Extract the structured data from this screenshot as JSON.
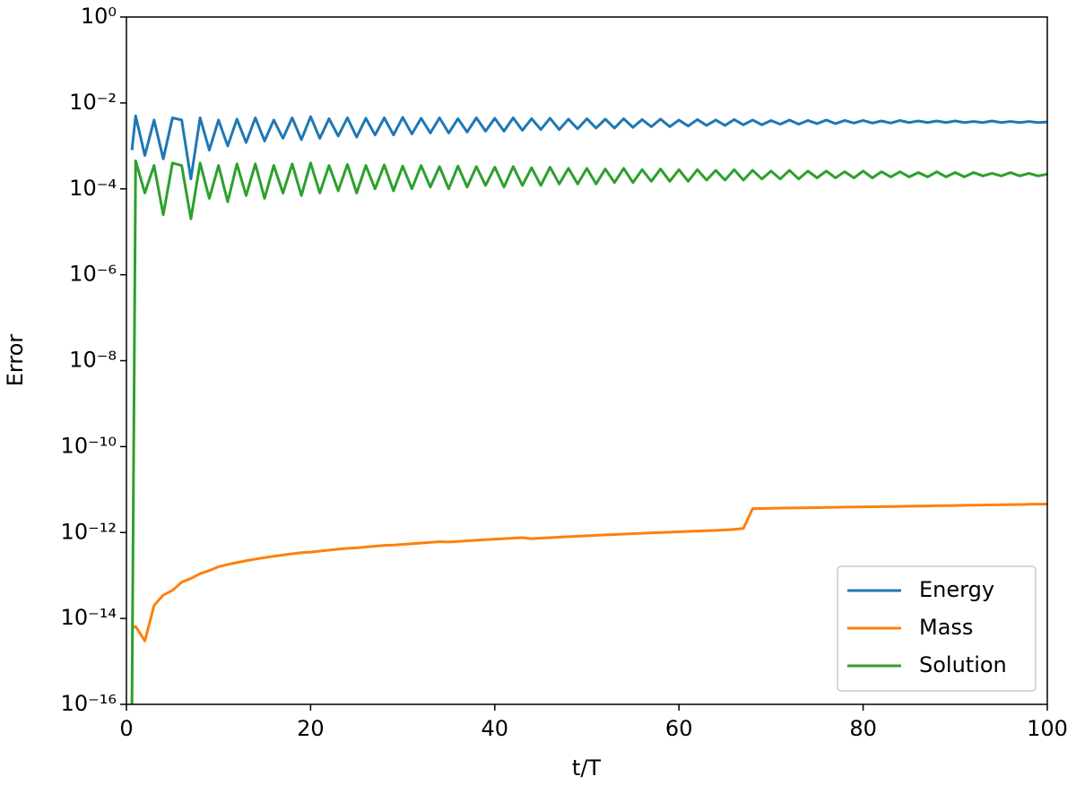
{
  "chart_data": {
    "type": "line",
    "xlabel": "t/T",
    "ylabel": "Error",
    "log_y": true,
    "legend": "lower right",
    "xlim": [
      0,
      100
    ],
    "xticks": [
      0,
      20,
      40,
      60,
      80,
      100
    ],
    "ylim": [
      1e-16,
      1
    ],
    "yticks": [
      {
        "value": 1e-16,
        "label": "10⁻¹⁶"
      },
      {
        "value": 1e-14,
        "label": "10⁻¹⁴"
      },
      {
        "value": 1e-12,
        "label": "10⁻¹²"
      },
      {
        "value": 1e-10,
        "label": "10⁻¹⁰"
      },
      {
        "value": 1e-08,
        "label": "10⁻⁸"
      },
      {
        "value": 1e-06,
        "label": "10⁻⁶"
      },
      {
        "value": 0.0001,
        "label": "10⁻⁴"
      },
      {
        "value": 0.01,
        "label": "10⁻²"
      },
      {
        "value": 1,
        "label": "10⁰"
      }
    ],
    "x": [
      0.6,
      1,
      2,
      3,
      4,
      5,
      6,
      7,
      8,
      9,
      10,
      11,
      12,
      13,
      14,
      15,
      16,
      17,
      18,
      19,
      20,
      21,
      22,
      23,
      24,
      25,
      26,
      27,
      28,
      29,
      30,
      31,
      32,
      33,
      34,
      35,
      36,
      37,
      38,
      39,
      40,
      41,
      42,
      43,
      44,
      45,
      46,
      47,
      48,
      49,
      50,
      51,
      52,
      53,
      54,
      55,
      56,
      57,
      58,
      59,
      60,
      61,
      62,
      63,
      64,
      65,
      66,
      67,
      68,
      69,
      70,
      71,
      72,
      73,
      74,
      75,
      76,
      77,
      78,
      79,
      80,
      81,
      82,
      83,
      84,
      85,
      86,
      87,
      88,
      89,
      90,
      91,
      92,
      93,
      94,
      95,
      96,
      97,
      98,
      99,
      100
    ],
    "series": [
      {
        "name": "Energy",
        "color": "#1f77b4",
        "values": [
          0.0008,
          0.005,
          0.0006,
          0.004,
          0.0005,
          0.0045,
          0.004,
          0.00017,
          0.0045,
          0.0008,
          0.004,
          0.001,
          0.0042,
          0.0012,
          0.0045,
          0.0013,
          0.004,
          0.0015,
          0.0045,
          0.0014,
          0.0048,
          0.0015,
          0.0043,
          0.0017,
          0.0045,
          0.0016,
          0.0044,
          0.0018,
          0.0045,
          0.0018,
          0.0046,
          0.0019,
          0.0044,
          0.002,
          0.0045,
          0.002,
          0.0043,
          0.0021,
          0.0045,
          0.0022,
          0.0044,
          0.0022,
          0.0045,
          0.0023,
          0.0043,
          0.0024,
          0.0044,
          0.0024,
          0.0042,
          0.0025,
          0.0043,
          0.0026,
          0.0042,
          0.0026,
          0.0043,
          0.0027,
          0.0041,
          0.0028,
          0.0042,
          0.0028,
          0.004,
          0.0029,
          0.0041,
          0.003,
          0.004,
          0.003,
          0.0041,
          0.0031,
          0.004,
          0.0031,
          0.0039,
          0.0032,
          0.004,
          0.0032,
          0.0039,
          0.0033,
          0.004,
          0.0033,
          0.0039,
          0.0034,
          0.0039,
          0.0034,
          0.0038,
          0.0034,
          0.0039,
          0.0035,
          0.0038,
          0.0035,
          0.0038,
          0.0035,
          0.0038,
          0.0035,
          0.0037,
          0.0035,
          0.0038,
          0.0035,
          0.0037,
          0.0035,
          0.0037,
          0.0035,
          0.0036
        ]
      },
      {
        "name": "Mass",
        "color": "#ff7f0e",
        "values": [
          6e-15,
          6.5e-15,
          3e-15,
          2e-14,
          3.5e-14,
          4.5e-14,
          7e-14,
          8.5e-14,
          1.1e-13,
          1.3e-13,
          1.6e-13,
          1.8e-13,
          2e-13,
          2.2e-13,
          2.4e-13,
          2.6e-13,
          2.8e-13,
          3e-13,
          3.2e-13,
          3.4e-13,
          3.5e-13,
          3.7e-13,
          3.9e-13,
          4.1e-13,
          4.3e-13,
          4.4e-13,
          4.6e-13,
          4.8e-13,
          5e-13,
          5.1e-13,
          5.3e-13,
          5.5e-13,
          5.7e-13,
          5.9e-13,
          6.1e-13,
          6e-13,
          6.2e-13,
          6.4e-13,
          6.6e-13,
          6.8e-13,
          7e-13,
          7.2e-13,
          7.4e-13,
          7.6e-13,
          7.2e-13,
          7.4e-13,
          7.6e-13,
          7.8e-13,
          8e-13,
          8.2e-13,
          8.4e-13,
          8.6e-13,
          8.8e-13,
          9e-13,
          9.2e-13,
          9.4e-13,
          9.6e-13,
          9.8e-13,
          1e-12,
          1.02e-12,
          1.04e-12,
          1.06e-12,
          1.08e-12,
          1.1e-12,
          1.12e-12,
          1.15e-12,
          1.18e-12,
          1.25e-12,
          3.6e-12,
          3.62e-12,
          3.65e-12,
          3.7e-12,
          3.72e-12,
          3.75e-12,
          3.78e-12,
          3.8e-12,
          3.83e-12,
          3.86e-12,
          3.9e-12,
          3.92e-12,
          3.95e-12,
          3.98e-12,
          4e-12,
          4.03e-12,
          4.06e-12,
          4.1e-12,
          4.13e-12,
          4.16e-12,
          4.2e-12,
          4.23e-12,
          4.26e-12,
          4.3e-12,
          4.33e-12,
          4.36e-12,
          4.4e-12,
          4.43e-12,
          4.46e-12,
          4.5e-12,
          4.53e-12,
          4.56e-12,
          4.6e-12
        ]
      },
      {
        "name": "Solution",
        "color": "#2ca02c",
        "values": [
          1e-16,
          0.00045,
          8e-05,
          0.00035,
          2.5e-05,
          0.0004,
          0.00035,
          2e-05,
          0.0004,
          6e-05,
          0.00035,
          5e-05,
          0.00038,
          7e-05,
          0.00038,
          6e-05,
          0.00035,
          8e-05,
          0.00038,
          7e-05,
          0.0004,
          8e-05,
          0.00035,
          9e-05,
          0.00037,
          8e-05,
          0.00035,
          0.0001,
          0.00036,
          9e-05,
          0.00034,
          0.0001,
          0.00035,
          0.00011,
          0.00033,
          0.0001,
          0.00034,
          0.00011,
          0.00033,
          0.00012,
          0.00032,
          0.00011,
          0.00033,
          0.00012,
          0.00031,
          0.00012,
          0.00032,
          0.00013,
          0.0003,
          0.00013,
          0.0003,
          0.00013,
          0.00029,
          0.00014,
          0.0003,
          0.00014,
          0.00028,
          0.00015,
          0.00029,
          0.00015,
          0.00028,
          0.00015,
          0.00028,
          0.00016,
          0.00027,
          0.00016,
          0.00028,
          0.00016,
          0.00027,
          0.00017,
          0.00026,
          0.00017,
          0.00027,
          0.00017,
          0.00026,
          0.00018,
          0.00026,
          0.00018,
          0.00025,
          0.00018,
          0.00026,
          0.00018,
          0.00025,
          0.00019,
          0.00025,
          0.00019,
          0.00024,
          0.00019,
          0.00025,
          0.00019,
          0.00024,
          0.00019,
          0.00024,
          0.0002,
          0.00023,
          0.0002,
          0.00024,
          0.0002,
          0.00023,
          0.0002,
          0.00022
        ]
      }
    ]
  }
}
